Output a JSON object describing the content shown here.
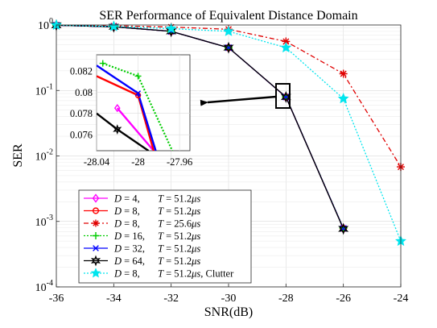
{
  "chart_data": {
    "type": "line",
    "title": "SER Performance of Equivalent Distance Domain",
    "xlabel": "SNR(dB)",
    "ylabel": "SER",
    "x_scale": "linear",
    "y_scale": "log",
    "xlim": [
      -36,
      -24
    ],
    "ylim": [
      0.0001,
      1
    ],
    "grid": true,
    "legend_position": "lower-left",
    "x_ticks": [
      "-36",
      "-34",
      "-32",
      "-30",
      "-28",
      "-26",
      "-24"
    ],
    "y_ticks": [
      {
        "value": 1,
        "mantissa": "10",
        "exponent": "0"
      },
      {
        "value": 0.1,
        "mantissa": "10",
        "exponent": "-1"
      },
      {
        "value": 0.01,
        "mantissa": "10",
        "exponent": "-2"
      },
      {
        "value": 0.001,
        "mantissa": "10",
        "exponent": "-3"
      },
      {
        "value": 0.0001,
        "mantissa": "10",
        "exponent": "-4"
      }
    ],
    "series": [
      {
        "name": "D = 4, T = 51.2μs",
        "legend": {
          "d": "4",
          "t": "51.2"
        },
        "color": "#ff00ff",
        "dash": "",
        "marker": "diamond",
        "x": [
          -36,
          -34,
          -32,
          -30,
          -28,
          -26
        ],
        "y": [
          0.99,
          0.94,
          0.8,
          0.45,
          0.0792,
          0.00078
        ],
        "inset": {
          "x": [
            -28.02,
            -27.985
          ],
          "y": [
            0.0785,
            0.0745
          ]
        }
      },
      {
        "name": "D = 8, T = 51.2μs",
        "legend": {
          "d": "8",
          "t": "51.2"
        },
        "color": "#ff0000",
        "dash": "",
        "marker": "circle",
        "x": [
          -36,
          -34,
          -32,
          -30,
          -28,
          -26
        ],
        "y": [
          0.99,
          0.94,
          0.8,
          0.45,
          0.0796,
          0.00078
        ],
        "inset": {
          "x": [
            -28.04,
            -28.0,
            -27.985
          ],
          "y": [
            0.0815,
            0.0797,
            0.0745
          ]
        }
      },
      {
        "name": "D = 8, T = 25.6μs",
        "legend": {
          "d": "8",
          "t": "25.6"
        },
        "color": "#e00000",
        "dash": "6,3,2,3",
        "marker": "asterisk",
        "x": [
          -36,
          -34,
          -32,
          -30,
          -28,
          -26,
          -24
        ],
        "y": [
          0.995,
          0.97,
          0.93,
          0.86,
          0.56,
          0.18,
          0.0068
        ],
        "inset": null
      },
      {
        "name": "D = 16, T = 51.2μs",
        "legend": {
          "d": "16",
          "t": "51.2"
        },
        "color": "#00cc00",
        "dash": "2,2",
        "marker": "plus",
        "x": [
          -36,
          -34,
          -32,
          -30,
          -28,
          -26
        ],
        "y": [
          0.99,
          0.94,
          0.8,
          0.45,
          0.0797,
          0.00079
        ],
        "inset": {
          "x": [
            -28.034,
            -28.0,
            -27.967
          ],
          "y": [
            0.0827,
            0.0815,
            0.0745
          ]
        }
      },
      {
        "name": "D = 32, T = 51.2μs",
        "legend": {
          "d": "32",
          "t": "51.2"
        },
        "color": "#0000ff",
        "dash": "",
        "marker": "x",
        "x": [
          -36,
          -34,
          -32,
          -30,
          -28,
          -26
        ],
        "y": [
          0.99,
          0.94,
          0.8,
          0.45,
          0.0795,
          0.00078
        ],
        "inset": {
          "x": [
            -28.04,
            -28.0,
            -27.983
          ],
          "y": [
            0.0825,
            0.0799,
            0.0745
          ]
        }
      },
      {
        "name": "D = 64, T = 51.2μs",
        "legend": {
          "d": "64",
          "t": "51.2"
        },
        "color": "#000000",
        "dash": "",
        "marker": "hexagram",
        "x": [
          -36,
          -34,
          -32,
          -30,
          -28,
          -26
        ],
        "y": [
          0.99,
          0.94,
          0.8,
          0.45,
          0.0793,
          0.00077
        ],
        "inset": {
          "x": [
            -28.04,
            -28.02,
            -27.99
          ],
          "y": [
            0.078,
            0.0765,
            0.0745
          ]
        }
      },
      {
        "name": "D = 8, T = 51.2μs, Clutter",
        "legend": {
          "d": "8",
          "t": "51.2",
          "suffix": ", Clutter"
        },
        "color": "#00e5ee",
        "dash": "2,2",
        "marker": "pentagram",
        "x": [
          -36,
          -34,
          -32,
          -30,
          -28,
          -26,
          -24
        ],
        "y": [
          0.995,
          0.95,
          0.88,
          0.8,
          0.45,
          0.075,
          0.0005
        ],
        "inset": null
      }
    ],
    "inset": {
      "xlim": [
        -28.04,
        -27.95
      ],
      "ylim": [
        0.0745,
        0.0835
      ],
      "x_ticks": [
        "-28.04",
        "-28",
        "-27.96"
      ],
      "y_ticks": [
        "0.076",
        "0.078",
        "0.08",
        "0.082"
      ],
      "zoom_center": {
        "x": -28,
        "y": 0.0795
      }
    }
  }
}
